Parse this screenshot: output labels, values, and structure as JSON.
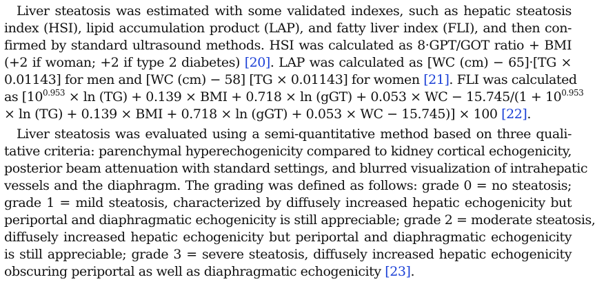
{
  "paragraph1": {
    "lines": [
      {
        "text": "Liver steatosis was estimated with some validated indexes, such as hepatic steatosis"
      },
      {
        "text": "index (HSI), lipid accumulation product (LAP), and fatty liver index (FLI), and then con-"
      },
      {
        "text": "firmed by standard ultrasound methods. HSI was calculated as 8·GPT/GOT ratio + BMI"
      },
      {
        "pre": "(+2 if woman; +2 if type 2 diabetes) ",
        "cite": "[20]",
        "post": ". LAP was calculated as [WC (cm) − 65]·[TG ×"
      },
      {
        "pre": "0.01143] for men and [WC (cm) − 58] [TG × 0.01143] for women ",
        "cite": "[21]",
        "post": ". FLI was calculated"
      },
      {
        "pre": "as [10",
        "sup": "0.953",
        "post": " × ln (TG) + 0.139 × BMI + 0.718 × ln (gGT) + 0.053 × WC − 15.745/(1 + 10",
        "sup2": "0.953"
      },
      {
        "pre": "× ln (TG) + 0.139 × BMI + 0.718 × ln (gGT) + 0.053 × WC − 15.745)] × 100 ",
        "cite": "[22]",
        "post": "."
      }
    ]
  },
  "paragraph2": {
    "lines": [
      {
        "text": "Liver steatosis was evaluated using a semi-quantitative method based on three quali-"
      },
      {
        "text": "tative criteria: parenchymal hyperechogenicity compared to kidney cortical echogenicity,"
      },
      {
        "text": "posterior beam attenuation with standard settings, and blurred visualization of intrahepatic"
      },
      {
        "text": "vessels and the diaphragm. The grading was defined as follows: grade 0 = no steatosis;"
      },
      {
        "text": "grade 1 = mild steatosis, characterized by diffusely increased hepatic echogenicity but"
      },
      {
        "text": "periportal and diaphragmatic echogenicity is still appreciable; grade 2 = moderate steatosis,"
      },
      {
        "text": "diffusely increased hepatic echogenicity but periportal and diaphragmatic echogenicity"
      },
      {
        "text": "is still appreciable; grade 3 = severe steatosis, diffusely increased hepatic echogenicity"
      },
      {
        "pre": "obscuring periportal as well as diaphragmatic echogenicity ",
        "cite": "[23]",
        "post": "."
      }
    ]
  },
  "colors": {
    "text": "#111111",
    "citation": "#1a3fd6"
  }
}
